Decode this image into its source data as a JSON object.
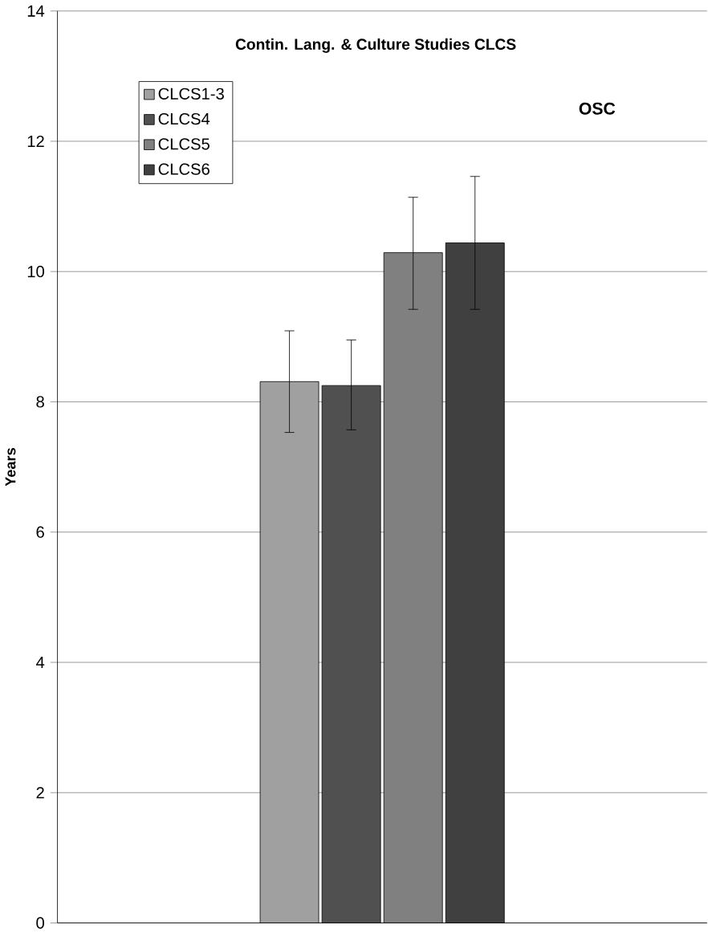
{
  "chart_data": {
    "type": "bar",
    "title": "Contin. Lang. & Culture Studies CLCS",
    "subtitle": "OSC",
    "ylabel": "Years",
    "categories": [
      null
    ],
    "series": [
      {
        "name": "CLCS1-3",
        "color": "#a0a0a0",
        "values": [
          8.31
        ],
        "errors": [
          [
            7.53,
            9.09
          ]
        ]
      },
      {
        "name": "CLCS4",
        "color": "#505050",
        "values": [
          8.25
        ],
        "errors": [
          [
            7.57,
            8.95
          ]
        ]
      },
      {
        "name": "CLCS5",
        "color": "#808080",
        "values": [
          10.29
        ],
        "errors": [
          [
            9.42,
            11.14
          ]
        ]
      },
      {
        "name": "CLCS6",
        "color": "#404040",
        "values": [
          10.44
        ],
        "errors": [
          [
            9.42,
            11.46
          ]
        ]
      }
    ],
    "ylim": [
      0,
      14
    ],
    "yticks": [
      0,
      2,
      4,
      6,
      8,
      10,
      12,
      14
    ],
    "grid": "y",
    "legend": "top left"
  }
}
